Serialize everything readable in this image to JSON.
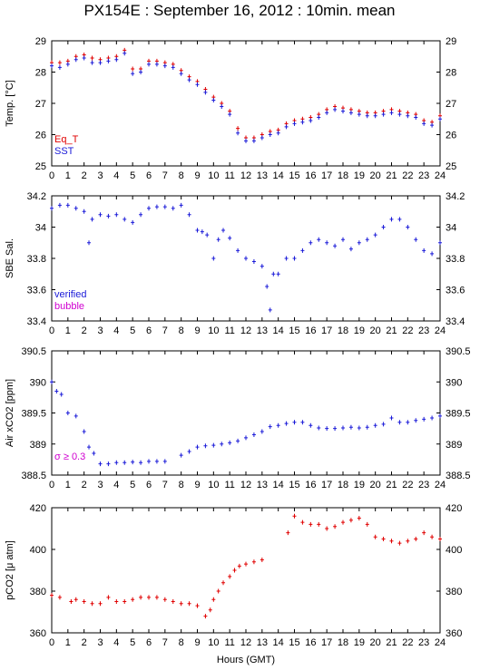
{
  "title": "PX154E : September 16, 2012 : 10min. mean",
  "colors": {
    "red": "#e00000",
    "blue": "#1a1ad8",
    "magenta": "#d000d0",
    "axis": "#000000"
  },
  "chart_data": [
    {
      "type": "scatter",
      "ylabel": "Temp. [°C]",
      "xlim": [
        0,
        24
      ],
      "ylim": [
        25,
        29
      ],
      "yticks": [
        25,
        26,
        27,
        28,
        29
      ],
      "xticks": [
        0,
        1,
        2,
        3,
        4,
        5,
        6,
        7,
        8,
        9,
        10,
        11,
        12,
        13,
        14,
        15,
        16,
        17,
        18,
        19,
        20,
        21,
        22,
        23,
        24
      ],
      "legend": [
        "Eq_T",
        "SST"
      ],
      "legend_position": "bottom-left",
      "series": [
        {
          "name": "Eq_T",
          "color": "red",
          "x": [
            0,
            0.5,
            1,
            1.5,
            2,
            2.5,
            3,
            3.5,
            4,
            4.5,
            5,
            5.5,
            6,
            6.5,
            7,
            7.5,
            8,
            8.5,
            9,
            9.5,
            10,
            10.5,
            11,
            11.5,
            12,
            12.5,
            13,
            13.5,
            14,
            14.5,
            15,
            15.5,
            16,
            16.5,
            17,
            17.5,
            18,
            18.5,
            19,
            19.5,
            20,
            20.5,
            21,
            21.5,
            22,
            22.5,
            23,
            23.5,
            24
          ],
          "y": [
            28.3,
            28.3,
            28.35,
            28.5,
            28.55,
            28.45,
            28.4,
            28.45,
            28.5,
            28.7,
            28.1,
            28.1,
            28.35,
            28.35,
            28.3,
            28.25,
            28.05,
            27.85,
            27.7,
            27.45,
            27.2,
            27.0,
            26.75,
            26.2,
            25.9,
            25.9,
            26.0,
            26.1,
            26.15,
            26.35,
            26.45,
            26.5,
            26.55,
            26.65,
            26.8,
            26.9,
            26.85,
            26.8,
            26.75,
            26.7,
            26.7,
            26.75,
            26.8,
            26.75,
            26.7,
            26.65,
            26.45,
            26.4,
            26.6
          ]
        },
        {
          "name": "SST",
          "color": "blue",
          "x": [
            0,
            0.5,
            1,
            1.5,
            2,
            2.5,
            3,
            3.5,
            4,
            4.5,
            5,
            5.5,
            6,
            6.5,
            7,
            7.5,
            8,
            8.5,
            9,
            9.5,
            10,
            10.5,
            11,
            11.5,
            12,
            12.5,
            13,
            13.5,
            14,
            14.5,
            15,
            15.5,
            16,
            16.5,
            17,
            17.5,
            18,
            18.5,
            19,
            19.5,
            20,
            20.5,
            21,
            21.5,
            22,
            22.5,
            23,
            23.5,
            24
          ],
          "y": [
            28.2,
            28.15,
            28.25,
            28.4,
            28.45,
            28.3,
            28.3,
            28.35,
            28.4,
            28.6,
            27.95,
            28.0,
            28.25,
            28.25,
            28.2,
            28.15,
            27.95,
            27.75,
            27.6,
            27.35,
            27.1,
            26.9,
            26.65,
            26.05,
            25.8,
            25.8,
            25.9,
            26.0,
            26.05,
            26.25,
            26.35,
            26.4,
            26.45,
            26.55,
            26.7,
            26.8,
            26.75,
            26.7,
            26.65,
            26.6,
            26.6,
            26.65,
            26.7,
            26.65,
            26.6,
            26.55,
            26.35,
            26.3,
            26.5
          ]
        }
      ]
    },
    {
      "type": "scatter",
      "ylabel": "SBE Sal.",
      "xlim": [
        0,
        24
      ],
      "ylim": [
        33.4,
        34.2
      ],
      "yticks": [
        33.4,
        33.6,
        33.8,
        34,
        34.2
      ],
      "ytick_labels": [
        "33.4",
        "33.6",
        "33.8",
        "34",
        "34.2"
      ],
      "xticks": [
        0,
        1,
        2,
        3,
        4,
        5,
        6,
        7,
        8,
        9,
        10,
        11,
        12,
        13,
        14,
        15,
        16,
        17,
        18,
        19,
        20,
        21,
        22,
        23,
        24
      ],
      "legend": [
        "verified",
        "bubble"
      ],
      "legend_position": "bottom-left",
      "series": [
        {
          "name": "verified",
          "color": "blue",
          "x": [
            0,
            0.5,
            1,
            1.5,
            2,
            2.3,
            2.5,
            3,
            3.5,
            4,
            4.5,
            5,
            5.5,
            6,
            6.5,
            7,
            7.5,
            8,
            8.5,
            9,
            9.3,
            9.6,
            10,
            10.3,
            10.6,
            11,
            11.5,
            12,
            12.5,
            13,
            13.3,
            13.5,
            13.7,
            14,
            14.5,
            15,
            15.5,
            16,
            16.5,
            17,
            17.5,
            18,
            18.5,
            19,
            19.5,
            20,
            20.5,
            21,
            21.5,
            22,
            22.5,
            23,
            23.5,
            24
          ],
          "y": [
            34.12,
            34.14,
            34.14,
            34.12,
            34.1,
            33.9,
            34.05,
            34.08,
            34.07,
            34.08,
            34.05,
            34.03,
            34.08,
            34.12,
            34.13,
            34.13,
            34.12,
            34.14,
            34.08,
            33.98,
            33.97,
            33.95,
            33.8,
            33.92,
            33.98,
            33.93,
            33.85,
            33.8,
            33.78,
            33.75,
            33.62,
            33.47,
            33.7,
            33.7,
            33.8,
            33.8,
            33.85,
            33.9,
            33.92,
            33.9,
            33.88,
            33.92,
            33.86,
            33.9,
            33.92,
            33.95,
            34.0,
            34.05,
            34.05,
            34.0,
            33.92,
            33.85,
            33.83,
            33.9
          ]
        }
      ]
    },
    {
      "type": "scatter",
      "ylabel": "Air xCO2 [ppm]",
      "xlim": [
        0,
        24
      ],
      "ylim": [
        388.5,
        390.5
      ],
      "yticks": [
        388.5,
        389,
        389.5,
        390,
        390.5
      ],
      "ytick_labels": [
        "388.5",
        "389",
        "389.5",
        "390",
        "390.5"
      ],
      "xticks": [
        0,
        1,
        2,
        3,
        4,
        5,
        6,
        7,
        8,
        9,
        10,
        11,
        12,
        13,
        14,
        15,
        16,
        17,
        18,
        19,
        20,
        21,
        22,
        23,
        24
      ],
      "annotation": "σ ≥ 0.3",
      "series": [
        {
          "name": "",
          "color": "blue",
          "x": [
            0,
            0.3,
            0.6,
            1,
            1.5,
            2,
            2.3,
            2.6,
            3,
            3.5,
            4,
            4.5,
            5,
            5.5,
            6,
            6.5,
            7,
            8,
            8.5,
            9,
            9.5,
            10,
            10.5,
            11,
            11.5,
            12,
            12.5,
            13,
            13.5,
            14,
            14.5,
            15,
            15.5,
            16,
            16.5,
            17,
            17.5,
            18,
            18.5,
            19,
            19.5,
            20,
            20.5,
            21,
            21.5,
            22,
            22.5,
            23,
            23.5,
            24
          ],
          "y": [
            390.0,
            389.85,
            389.8,
            389.5,
            389.45,
            389.2,
            388.95,
            388.85,
            388.68,
            388.68,
            388.7,
            388.7,
            388.71,
            388.7,
            388.72,
            388.72,
            388.72,
            388.82,
            388.88,
            388.95,
            388.97,
            388.98,
            389.0,
            389.02,
            389.05,
            389.1,
            389.15,
            389.2,
            389.28,
            389.3,
            389.33,
            389.35,
            389.35,
            389.3,
            389.26,
            389.25,
            389.25,
            389.26,
            389.27,
            389.26,
            389.27,
            389.3,
            389.32,
            389.42,
            389.35,
            389.35,
            389.38,
            389.4,
            389.42,
            389.45
          ]
        }
      ]
    },
    {
      "type": "scatter",
      "ylabel": "pCO2 [μ atm]",
      "xlim": [
        0,
        24
      ],
      "ylim": [
        360,
        420
      ],
      "yticks": [
        360,
        380,
        400,
        420
      ],
      "xticks": [
        0,
        1,
        2,
        3,
        4,
        5,
        6,
        7,
        8,
        9,
        10,
        11,
        12,
        13,
        14,
        15,
        16,
        17,
        18,
        19,
        20,
        21,
        22,
        23,
        24
      ],
      "xlabel": "Hours (GMT)",
      "series": [
        {
          "name": "",
          "color": "red",
          "x": [
            0,
            0.5,
            1.2,
            1.5,
            2,
            2.5,
            3,
            3.5,
            4,
            4.5,
            5,
            5.5,
            6,
            6.5,
            7,
            7.5,
            8,
            8.5,
            9,
            9.5,
            9.8,
            10,
            10.3,
            10.6,
            11,
            11.3,
            11.6,
            12,
            12.5,
            13,
            14.6,
            15,
            15.5,
            16,
            16.5,
            17,
            17.5,
            18,
            18.5,
            19,
            19.5,
            20,
            20.5,
            21,
            21.5,
            22,
            22.5,
            23,
            23.5,
            24
          ],
          "y": [
            378,
            377,
            375,
            376,
            375,
            374,
            374,
            377,
            375,
            375,
            376,
            377,
            377,
            377,
            376,
            375,
            374,
            374,
            373,
            368,
            371,
            376,
            380,
            384,
            387,
            390,
            392,
            393,
            394,
            395,
            408,
            416,
            413,
            412,
            412,
            410,
            411,
            413,
            414,
            415,
            412,
            406,
            405,
            404,
            403,
            404,
            405,
            408,
            406,
            405
          ]
        }
      ]
    }
  ]
}
